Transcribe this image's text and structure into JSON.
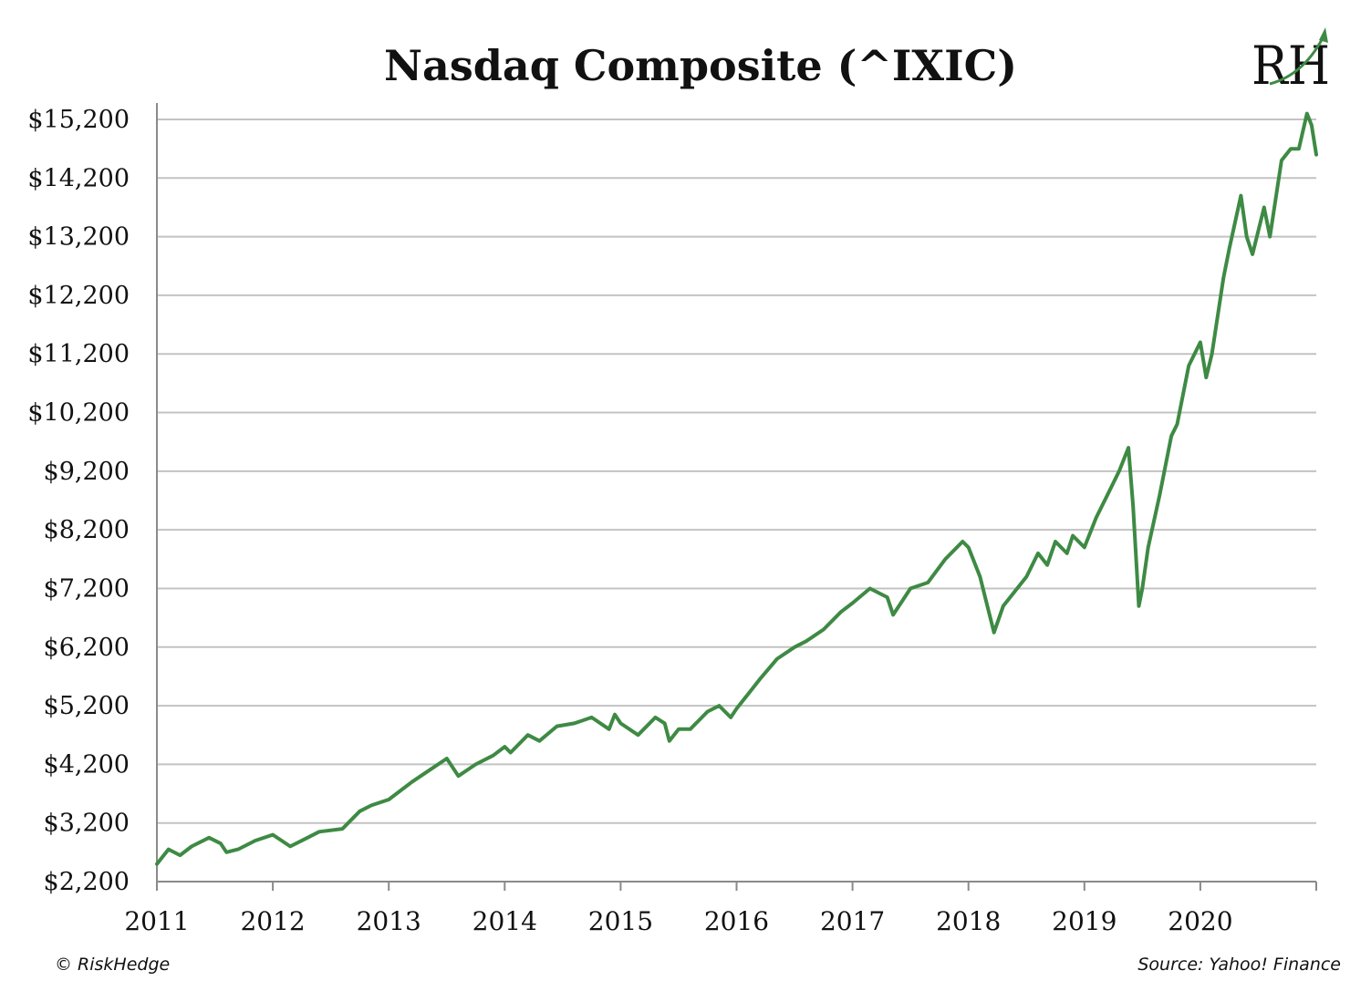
{
  "chart_data": {
    "type": "line",
    "title": "Nasdaq Composite (^IXIC)",
    "xlabel": "",
    "ylabel": "",
    "xlim": [
      2011,
      2021
    ],
    "ylim": [
      2200,
      15200
    ],
    "x_ticks": [
      "2011",
      "2012",
      "2013",
      "2014",
      "2015",
      "2016",
      "2017",
      "2018",
      "2019",
      "2020"
    ],
    "x_tick_values": [
      2011,
      2012,
      2013,
      2014,
      2015,
      2016,
      2017,
      2018,
      2019,
      2020
    ],
    "y_ticks": [
      "$2,200",
      "$3,200",
      "$4,200",
      "$5,200",
      "$6,200",
      "$7,200",
      "$8,200",
      "$9,200",
      "$10,200",
      "$11,200",
      "$12,200",
      "$13,200",
      "$14,200",
      "$15,200"
    ],
    "y_tick_values": [
      2200,
      3200,
      4200,
      5200,
      6200,
      7200,
      8200,
      9200,
      10200,
      11200,
      12200,
      13200,
      14200,
      15200
    ],
    "grid": "horizontal",
    "legend": "none",
    "line_color": "#3e8a44",
    "series": [
      {
        "x": [
          2011.0,
          2011.1,
          2011.2,
          2011.3,
          2011.45,
          2011.55,
          2011.6,
          2011.7,
          2011.85,
          2012.0,
          2012.15,
          2012.3,
          2012.4,
          2012.6,
          2012.75,
          2012.85,
          2013.0,
          2013.2,
          2013.35,
          2013.5,
          2013.6,
          2013.75,
          2013.9,
          2014.0,
          2014.05,
          2014.2,
          2014.3,
          2014.45,
          2014.6,
          2014.75,
          2014.9,
          2014.95,
          2015.0,
          2015.15,
          2015.3,
          2015.38,
          2015.42,
          2015.5,
          2015.6,
          2015.75,
          2015.85,
          2015.95,
          2016.0,
          2016.1,
          2016.2,
          2016.35,
          2016.5,
          2016.6,
          2016.75,
          2016.9,
          2017.0,
          2017.15,
          2017.3,
          2017.35,
          2017.45,
          2017.5,
          2017.65,
          2017.8,
          2017.95,
          2018.0,
          2018.1,
          2018.15,
          2018.22,
          2018.3,
          2018.5,
          2018.6,
          2018.68,
          2018.75,
          2018.85,
          2018.9,
          2019.0,
          2019.1,
          2019.2,
          2019.3,
          2019.38,
          2019.42,
          2019.47,
          2019.5,
          2019.55,
          2019.65,
          2019.75,
          2019.8,
          2019.9,
          2020.0,
          2020.05,
          2020.1,
          2020.2,
          2020.25,
          2020.35,
          2020.4,
          2020.45,
          2020.55,
          2020.6,
          2020.7,
          2020.78,
          2020.85,
          2020.92,
          2020.96,
          2021.0
        ],
        "y": [
          2500,
          2750,
          2650,
          2800,
          2950,
          2850,
          2700,
          2750,
          2900,
          3000,
          2800,
          2950,
          3050,
          3100,
          3400,
          3500,
          3600,
          3900,
          4100,
          4300,
          4000,
          4200,
          4350,
          4500,
          4400,
          4700,
          4600,
          4850,
          4900,
          5000,
          4800,
          5050,
          4900,
          4700,
          5000,
          4900,
          4600,
          4800,
          4800,
          5100,
          5200,
          5000,
          5150,
          5400,
          5650,
          6000,
          6200,
          6300,
          6500,
          6800,
          6950,
          7200,
          7050,
          6750,
          7050,
          7200,
          7300,
          7700,
          8000,
          7900,
          7400,
          7000,
          6450,
          6900,
          7400,
          7800,
          7600,
          8000,
          7800,
          8100,
          7900,
          8400,
          8800,
          9200,
          9600,
          8600,
          6900,
          7200,
          7900,
          8800,
          9800,
          10000,
          11000,
          11400,
          10800,
          11200,
          12500,
          13000,
          13900,
          13200,
          12900,
          13700,
          13200,
          14500,
          14700,
          14700,
          15300,
          15100,
          14600
        ]
      }
    ]
  },
  "branding": {
    "logo_text": "RH",
    "copyright": "© RiskHedge",
    "source": "Source: Yahoo! Finance"
  }
}
